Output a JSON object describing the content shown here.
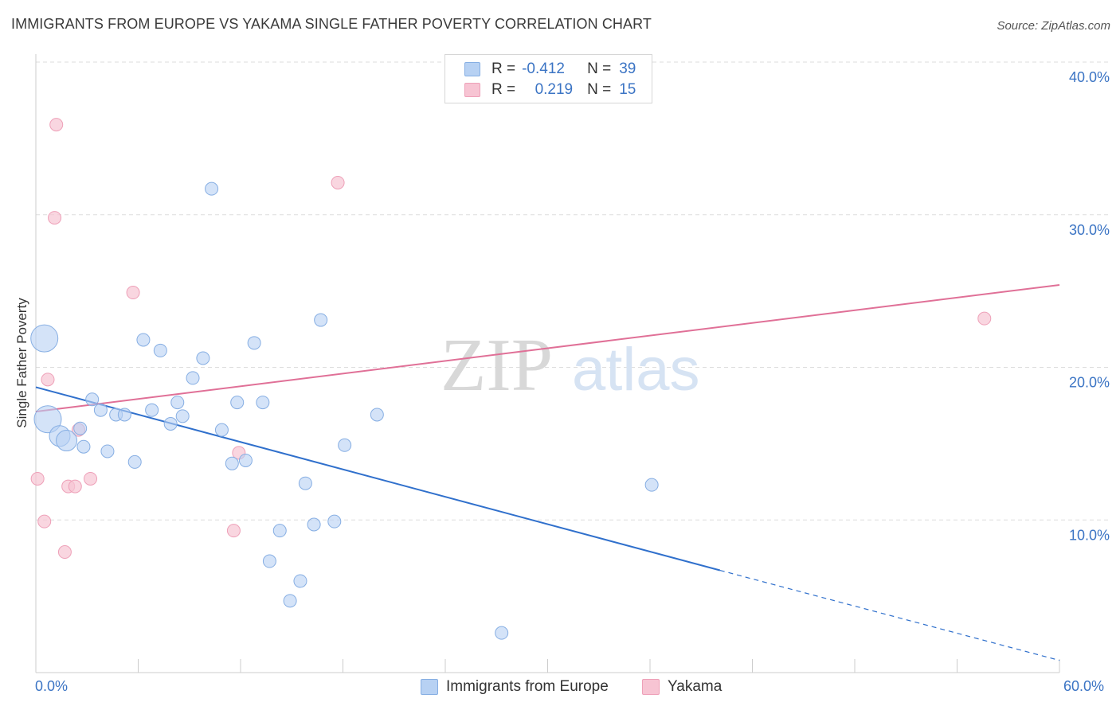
{
  "title": "IMMIGRANTS FROM EUROPE VS YAKAMA SINGLE FATHER POVERTY CORRELATION CHART",
  "source": "Source: ZipAtlas.com",
  "watermark": {
    "zip": "ZIP",
    "atlas": "atlas"
  },
  "legend_top": {
    "rows": [
      {
        "r_label": "R =",
        "r_value": "-0.412",
        "n_label": "N =",
        "n_value": "39"
      },
      {
        "r_label": "R =",
        "r_value": "0.219",
        "n_label": "N =",
        "n_value": "15"
      }
    ]
  },
  "legend_bottom": [
    "Immigrants from Europe",
    "Yakama"
  ],
  "colors": {
    "blue_fill": "#b7d1f3",
    "blue_stroke": "#86aee3",
    "blue_line": "#3070cc",
    "pink_fill": "#f7c4d3",
    "pink_stroke": "#eea0b8",
    "pink_line": "#e07097",
    "axis_text": "#3b74c4",
    "grid": "#dddddd"
  },
  "chart_data": {
    "type": "scatter",
    "title": "IMMIGRANTS FROM EUROPE VS YAKAMA SINGLE FATHER POVERTY CORRELATION CHART",
    "xlabel": "",
    "ylabel": "Single Father Poverty",
    "xlim": [
      0,
      60
    ],
    "ylim": [
      0,
      40
    ],
    "x_tick_labels": [
      "0.0%",
      "60.0%"
    ],
    "y_ticks": [
      10,
      20,
      30,
      40
    ],
    "y_tick_labels": [
      "10.0%",
      "20.0%",
      "30.0%",
      "40.0%"
    ],
    "grid": true,
    "legend_placement": "bottom",
    "series": [
      {
        "name": "Immigrants from Europe",
        "points": [
          {
            "x": 0.5,
            "y": 21.9,
            "s": "lg"
          },
          {
            "x": 0.7,
            "y": 16.6,
            "s": "lg"
          },
          {
            "x": 1.4,
            "y": 15.5,
            "s": "md"
          },
          {
            "x": 1.8,
            "y": 15.2,
            "s": "md"
          },
          {
            "x": 2.6,
            "y": 16.0,
            "s": "sm"
          },
          {
            "x": 2.8,
            "y": 14.8,
            "s": "sm"
          },
          {
            "x": 3.3,
            "y": 17.9,
            "s": "sm"
          },
          {
            "x": 3.8,
            "y": 17.2,
            "s": "sm"
          },
          {
            "x": 4.2,
            "y": 14.5,
            "s": "sm"
          },
          {
            "x": 4.7,
            "y": 16.9,
            "s": "sm"
          },
          {
            "x": 5.2,
            "y": 16.9,
            "s": "sm"
          },
          {
            "x": 5.8,
            "y": 13.8,
            "s": "sm"
          },
          {
            "x": 6.3,
            "y": 21.8,
            "s": "sm"
          },
          {
            "x": 6.8,
            "y": 17.2,
            "s": "sm"
          },
          {
            "x": 7.3,
            "y": 21.1,
            "s": "sm"
          },
          {
            "x": 7.9,
            "y": 16.3,
            "s": "sm"
          },
          {
            "x": 8.3,
            "y": 17.7,
            "s": "sm"
          },
          {
            "x": 8.6,
            "y": 16.8,
            "s": "sm"
          },
          {
            "x": 9.2,
            "y": 19.3,
            "s": "sm"
          },
          {
            "x": 9.8,
            "y": 20.6,
            "s": "sm"
          },
          {
            "x": 10.3,
            "y": 31.7,
            "s": "sm"
          },
          {
            "x": 10.9,
            "y": 15.9,
            "s": "sm"
          },
          {
            "x": 11.5,
            "y": 13.7,
            "s": "sm"
          },
          {
            "x": 11.8,
            "y": 17.7,
            "s": "sm"
          },
          {
            "x": 12.3,
            "y": 13.9,
            "s": "sm"
          },
          {
            "x": 12.8,
            "y": 21.6,
            "s": "sm"
          },
          {
            "x": 13.3,
            "y": 17.7,
            "s": "sm"
          },
          {
            "x": 13.7,
            "y": 7.3,
            "s": "sm"
          },
          {
            "x": 14.3,
            "y": 9.3,
            "s": "sm"
          },
          {
            "x": 14.9,
            "y": 4.7,
            "s": "sm"
          },
          {
            "x": 15.5,
            "y": 6.0,
            "s": "sm"
          },
          {
            "x": 15.8,
            "y": 12.4,
            "s": "sm"
          },
          {
            "x": 16.3,
            "y": 9.7,
            "s": "sm"
          },
          {
            "x": 16.7,
            "y": 23.1,
            "s": "sm"
          },
          {
            "x": 17.5,
            "y": 9.9,
            "s": "sm"
          },
          {
            "x": 18.1,
            "y": 14.9,
            "s": "sm"
          },
          {
            "x": 20.0,
            "y": 16.9,
            "s": "sm"
          },
          {
            "x": 27.3,
            "y": 2.6,
            "s": "sm"
          },
          {
            "x": 36.1,
            "y": 12.3,
            "s": "sm"
          }
        ],
        "trend": {
          "x0": 0,
          "y0": 18.7,
          "x1": 40.1,
          "y1": 6.7,
          "dash_to_x": 60,
          "dash_to_y": 0.8
        }
      },
      {
        "name": "Yakama",
        "points": [
          {
            "x": 0.1,
            "y": 12.7
          },
          {
            "x": 0.5,
            "y": 9.9
          },
          {
            "x": 0.7,
            "y": 19.2
          },
          {
            "x": 1.2,
            "y": 35.9
          },
          {
            "x": 1.1,
            "y": 29.8
          },
          {
            "x": 1.7,
            "y": 7.9
          },
          {
            "x": 1.9,
            "y": 12.2
          },
          {
            "x": 2.3,
            "y": 12.2
          },
          {
            "x": 2.5,
            "y": 15.9
          },
          {
            "x": 3.2,
            "y": 12.7
          },
          {
            "x": 5.7,
            "y": 24.9
          },
          {
            "x": 11.6,
            "y": 9.3
          },
          {
            "x": 11.9,
            "y": 14.4
          },
          {
            "x": 17.7,
            "y": 32.1
          },
          {
            "x": 55.6,
            "y": 23.2
          }
        ],
        "trend": {
          "x0": 0,
          "y0": 17.1,
          "x1": 60,
          "y1": 25.4
        }
      }
    ]
  }
}
